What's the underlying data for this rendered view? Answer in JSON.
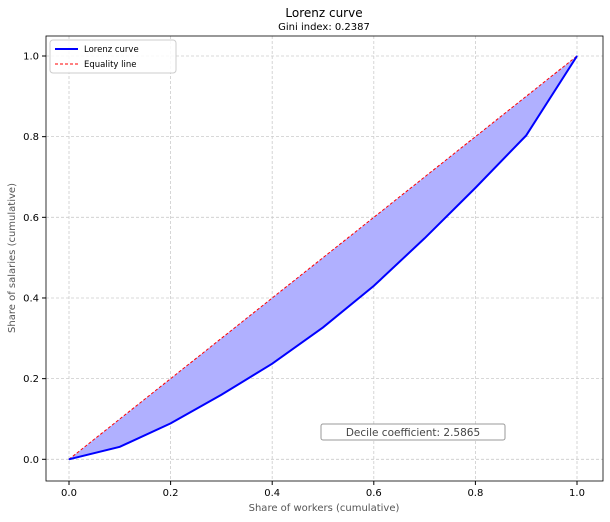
{
  "chart_data": {
    "type": "line",
    "title": "Lorenz curve",
    "subtitle": "Gini index: 0.2387",
    "xlabel": "Share of workers (cumulative)",
    "ylabel": "Share of salaries (cumulative)",
    "xlim": [
      -0.045,
      1.05
    ],
    "ylim": [
      -0.05,
      1.05
    ],
    "xticks": [
      "0.0",
      "0.2",
      "0.4",
      "0.6",
      "0.8",
      "1.0"
    ],
    "yticks": [
      "0.0",
      "0.2",
      "0.4",
      "0.6",
      "0.8",
      "1.0"
    ],
    "grid": true,
    "legend_position": "top-left",
    "series": [
      {
        "name": "Lorenz curve",
        "color": "#0000ff",
        "style": "solid",
        "x": [
          0,
          0.1,
          0.2,
          0.3,
          0.4,
          0.5,
          0.6,
          0.7,
          0.8,
          0.9,
          1.0
        ],
        "y": [
          0,
          0.031,
          0.089,
          0.16,
          0.237,
          0.327,
          0.43,
          0.548,
          0.673,
          0.803,
          1.0
        ]
      },
      {
        "name": "Equality line",
        "color": "#ff0000",
        "style": "dashed",
        "x": [
          0,
          1
        ],
        "y": [
          0,
          1
        ]
      }
    ],
    "fill_between": {
      "color": "#b0b0ff"
    },
    "annotation": "Decile coefficient: 2.5865"
  }
}
